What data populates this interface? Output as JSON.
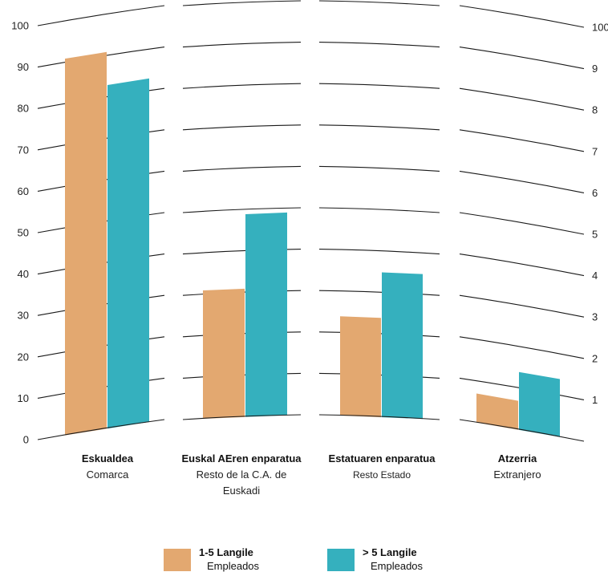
{
  "chart_data": {
    "type": "bar",
    "y_ticks": [
      0,
      10,
      20,
      30,
      40,
      50,
      60,
      70,
      80,
      90,
      100
    ],
    "right_tick_labels": [
      "1",
      "2",
      "3",
      "4",
      "5",
      "6",
      "7",
      "8",
      "9",
      "100"
    ],
    "ylim": [
      0,
      100
    ],
    "grid": true,
    "categories": [
      {
        "name": "Eskualdea",
        "sub": "Comarca"
      },
      {
        "name": "Euskal AEren enparatua",
        "sub": "Resto de la C.A. de Euskadi"
      },
      {
        "name": "Estatuaren enparatua",
        "sub": "Resto Estado"
      },
      {
        "name": "Atzerria",
        "sub": "Extranjero"
      }
    ],
    "series": [
      {
        "name": "1-5 Langile",
        "sub": "Empleados",
        "color": "#E3A870",
        "values": [
          91,
          31,
          24,
          7
        ]
      },
      {
        "name": "> 5 Langile",
        "sub": "Empleados",
        "color": "#35B0BE",
        "values": [
          83,
          49,
          35,
          14
        ]
      }
    ],
    "legend_position": "bottom"
  }
}
